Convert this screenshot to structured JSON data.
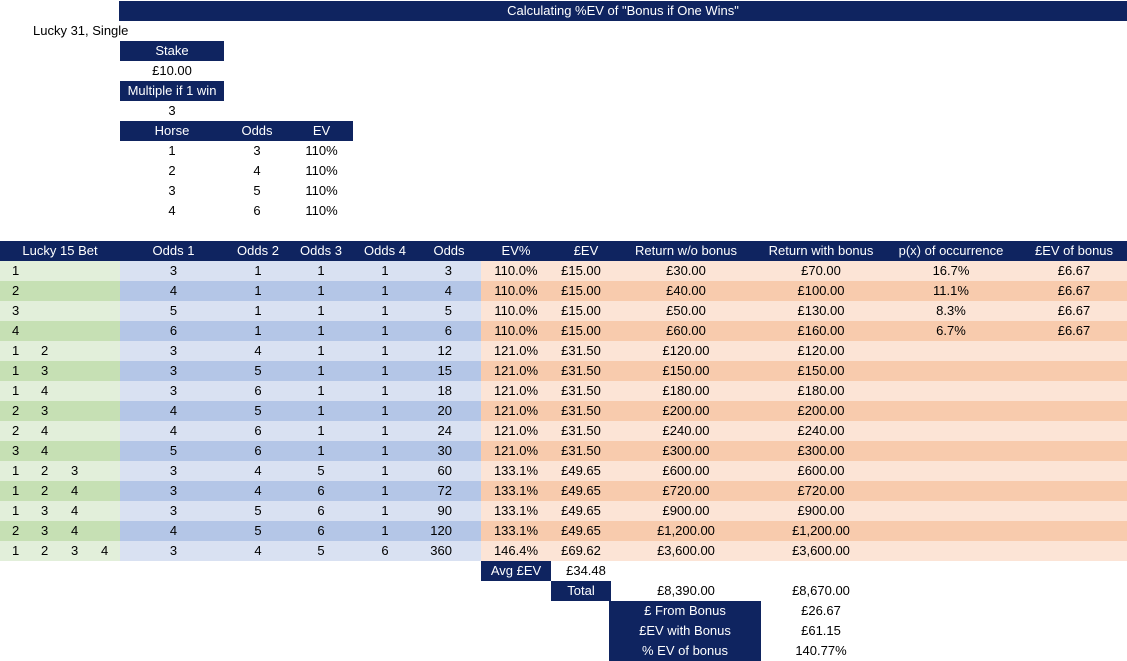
{
  "title": "Calculating %EV of \"Bonus if One Wins\"",
  "subtitle": "Lucky 31, Single",
  "inputs": {
    "stake_label": "Stake",
    "stake_value": "£10.00",
    "multiple_label": "Multiple if 1 win",
    "multiple_value": "3"
  },
  "horses": {
    "headers": [
      "Horse",
      "Odds",
      "EV"
    ],
    "rows": [
      [
        "1",
        "3",
        "110%"
      ],
      [
        "2",
        "4",
        "110%"
      ],
      [
        "3",
        "5",
        "110%"
      ],
      [
        "4",
        "6",
        "110%"
      ]
    ]
  },
  "bets": {
    "headers": [
      "Lucky 15 Bet",
      "Odds 1",
      "Odds 2",
      "Odds 3",
      "Odds 4",
      "Odds",
      "EV%",
      "£EV",
      "Return w/o bonus",
      "Return with bonus",
      "p(x) of occurrence",
      "£EV of bonus"
    ],
    "rows": [
      {
        "sel": [
          "1",
          "",
          "",
          ""
        ],
        "vals": [
          "3",
          "1",
          "1",
          "1",
          "3",
          "110.0%",
          "£15.00",
          "£30.00",
          "£70.00",
          "16.7%",
          "£6.67"
        ]
      },
      {
        "sel": [
          "2",
          "",
          "",
          ""
        ],
        "vals": [
          "4",
          "1",
          "1",
          "1",
          "4",
          "110.0%",
          "£15.00",
          "£40.00",
          "£100.00",
          "11.1%",
          "£6.67"
        ]
      },
      {
        "sel": [
          "3",
          "",
          "",
          ""
        ],
        "vals": [
          "5",
          "1",
          "1",
          "1",
          "5",
          "110.0%",
          "£15.00",
          "£50.00",
          "£130.00",
          "8.3%",
          "£6.67"
        ]
      },
      {
        "sel": [
          "4",
          "",
          "",
          ""
        ],
        "vals": [
          "6",
          "1",
          "1",
          "1",
          "6",
          "110.0%",
          "£15.00",
          "£60.00",
          "£160.00",
          "6.7%",
          "£6.67"
        ]
      },
      {
        "sel": [
          "1",
          "2",
          "",
          ""
        ],
        "vals": [
          "3",
          "4",
          "1",
          "1",
          "12",
          "121.0%",
          "£31.50",
          "£120.00",
          "£120.00",
          "",
          ""
        ]
      },
      {
        "sel": [
          "1",
          "3",
          "",
          ""
        ],
        "vals": [
          "3",
          "5",
          "1",
          "1",
          "15",
          "121.0%",
          "£31.50",
          "£150.00",
          "£150.00",
          "",
          ""
        ]
      },
      {
        "sel": [
          "1",
          "4",
          "",
          ""
        ],
        "vals": [
          "3",
          "6",
          "1",
          "1",
          "18",
          "121.0%",
          "£31.50",
          "£180.00",
          "£180.00",
          "",
          ""
        ]
      },
      {
        "sel": [
          "2",
          "3",
          "",
          ""
        ],
        "vals": [
          "4",
          "5",
          "1",
          "1",
          "20",
          "121.0%",
          "£31.50",
          "£200.00",
          "£200.00",
          "",
          ""
        ]
      },
      {
        "sel": [
          "2",
          "4",
          "",
          ""
        ],
        "vals": [
          "4",
          "6",
          "1",
          "1",
          "24",
          "121.0%",
          "£31.50",
          "£240.00",
          "£240.00",
          "",
          ""
        ]
      },
      {
        "sel": [
          "3",
          "4",
          "",
          ""
        ],
        "vals": [
          "5",
          "6",
          "1",
          "1",
          "30",
          "121.0%",
          "£31.50",
          "£300.00",
          "£300.00",
          "",
          ""
        ]
      },
      {
        "sel": [
          "1",
          "2",
          "3",
          ""
        ],
        "vals": [
          "3",
          "4",
          "5",
          "1",
          "60",
          "133.1%",
          "£49.65",
          "£600.00",
          "£600.00",
          "",
          ""
        ]
      },
      {
        "sel": [
          "1",
          "2",
          "4",
          ""
        ],
        "vals": [
          "3",
          "4",
          "6",
          "1",
          "72",
          "133.1%",
          "£49.65",
          "£720.00",
          "£720.00",
          "",
          ""
        ]
      },
      {
        "sel": [
          "1",
          "3",
          "4",
          ""
        ],
        "vals": [
          "3",
          "5",
          "6",
          "1",
          "90",
          "133.1%",
          "£49.65",
          "£900.00",
          "£900.00",
          "",
          ""
        ]
      },
      {
        "sel": [
          "2",
          "3",
          "4",
          ""
        ],
        "vals": [
          "4",
          "5",
          "6",
          "1",
          "120",
          "133.1%",
          "£49.65",
          "£1,200.00",
          "£1,200.00",
          "",
          ""
        ]
      },
      {
        "sel": [
          "1",
          "2",
          "3",
          "4"
        ],
        "vals": [
          "3",
          "4",
          "5",
          "6",
          "360",
          "146.4%",
          "£69.62",
          "£3,600.00",
          "£3,600.00",
          "",
          ""
        ]
      }
    ]
  },
  "summary": {
    "avg_label": "Avg £EV",
    "avg_value": "£34.48",
    "total_label": "Total",
    "total_without": "£8,390.00",
    "total_with": "£8,670.00",
    "from_bonus_label": "£ From Bonus",
    "from_bonus_value": "£26.67",
    "ev_with_bonus_label": "£EV with Bonus",
    "ev_with_bonus_value": "£61.15",
    "pct_ev_label": "% EV of bonus",
    "pct_ev_value": "140.77%"
  },
  "colors": {
    "header_navy": "#0f2460",
    "green_light": "#e2efda",
    "green_dark": "#c6e0b4",
    "blue_light": "#d9e1f2",
    "blue_dark": "#b4c6e7",
    "orange_light": "#fce4d6",
    "orange_dark": "#f8cbad"
  }
}
